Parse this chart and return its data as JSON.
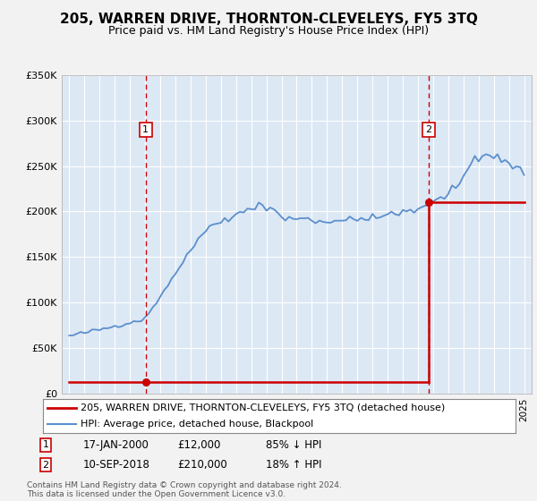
{
  "title": "205, WARREN DRIVE, THORNTON-CLEVELEYS, FY5 3TQ",
  "subtitle": "Price paid vs. HM Land Registry's House Price Index (HPI)",
  "legend_line1": "205, WARREN DRIVE, THORNTON-CLEVELEYS, FY5 3TQ (detached house)",
  "legend_line2": "HPI: Average price, detached house, Blackpool",
  "footnote": "Contains HM Land Registry data © Crown copyright and database right 2024.\nThis data is licensed under the Open Government Licence v3.0.",
  "sale1_label": "1",
  "sale1_date": "17-JAN-2000",
  "sale1_price": "£12,000",
  "sale1_hpi": "85% ↓ HPI",
  "sale2_label": "2",
  "sale2_date": "10-SEP-2018",
  "sale2_price": "£210,000",
  "sale2_hpi": "18% ↑ HPI",
  "sale1_year": 2000.04,
  "sale1_value": 12000,
  "sale2_year": 2018.69,
  "sale2_value": 210000,
  "ylim": [
    0,
    350000
  ],
  "xlim": [
    1994.5,
    2025.5
  ],
  "yticks": [
    0,
    50000,
    100000,
    150000,
    200000,
    250000,
    300000,
    350000
  ],
  "ytick_labels": [
    "£0",
    "£50K",
    "£100K",
    "£150K",
    "£200K",
    "£250K",
    "£300K",
    "£350K"
  ],
  "price_line_color": "#cc0000",
  "hpi_line_color": "#5b8fcc",
  "dashed_line_color": "#cc0000",
  "plot_bg_color": "#dde8f5",
  "fig_bg_color": "#f2f2f2",
  "grid_color": "#ffffff",
  "title_fontsize": 11,
  "subtitle_fontsize": 9,
  "tick_fontsize": 8,
  "legend_fontsize": 8,
  "table_fontsize": 8.5,
  "footnote_fontsize": 6.5,
  "num_box_color": "#cc0000"
}
